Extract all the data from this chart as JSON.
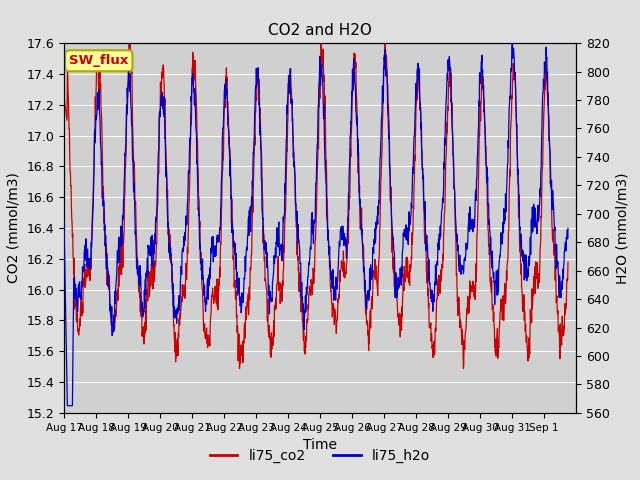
{
  "title": "CO2 and H2O",
  "xlabel": "Time",
  "ylabel_left": "CO2 (mmol/m3)",
  "ylabel_right": "H2O (mmol/m3)",
  "ylim_left": [
    15.2,
    17.6
  ],
  "ylim_right": [
    560,
    820
  ],
  "bg_color": "#e0e0e0",
  "plot_bg_color": "#d0d0d0",
  "co2_color": "#cc0000",
  "h2o_color": "#0000cc",
  "legend_label_co2": "li75_co2",
  "legend_label_h2o": "li75_h2o",
  "box_label": "SW_flux",
  "box_facecolor": "#ffff99",
  "box_edgecolor": "#aaaa00",
  "box_text_color": "#cc0000",
  "n_points": 1500,
  "title_fontsize": 11,
  "axis_label_fontsize": 10,
  "tick_fontsize": 9,
  "legend_fontsize": 10
}
